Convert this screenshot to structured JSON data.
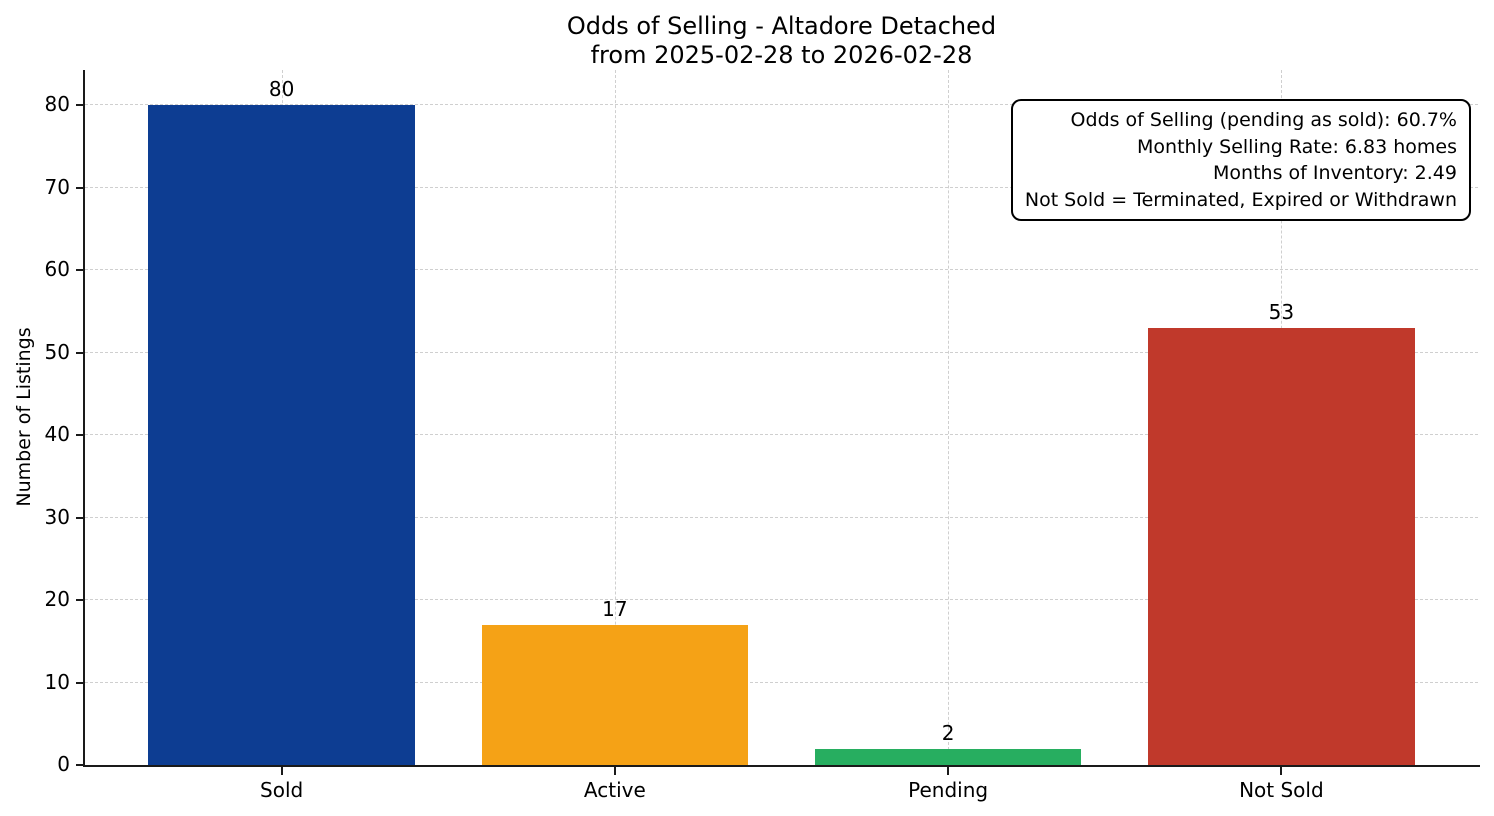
{
  "chart_data": {
    "type": "bar",
    "title": "Odds of Selling - Altadore Detached",
    "subtitle": "from 2025-02-28 to 2026-02-28",
    "categories": [
      "Sold",
      "Active",
      "Pending",
      "Not Sold"
    ],
    "values": [
      80,
      17,
      2,
      53
    ],
    "bar_colors": [
      "#0d3d92",
      "#f5a216",
      "#27ae60",
      "#c0392b"
    ],
    "xlabel": "",
    "ylabel": "Number of Listings",
    "yticks": [
      0,
      10,
      20,
      30,
      40,
      50,
      60,
      70,
      80
    ],
    "ylim": [
      0,
      84.3
    ],
    "xlim": [
      -0.59,
      3.59
    ],
    "bar_width_units": 0.8,
    "grid": true,
    "legend": "none",
    "annotations": [
      "Odds of Selling (pending as sold): 60.7%",
      "Monthly Selling Rate: 6.83 homes",
      "Months of Inventory: 2.49",
      "Not Sold = Terminated, Expired or Withdrawn"
    ]
  }
}
